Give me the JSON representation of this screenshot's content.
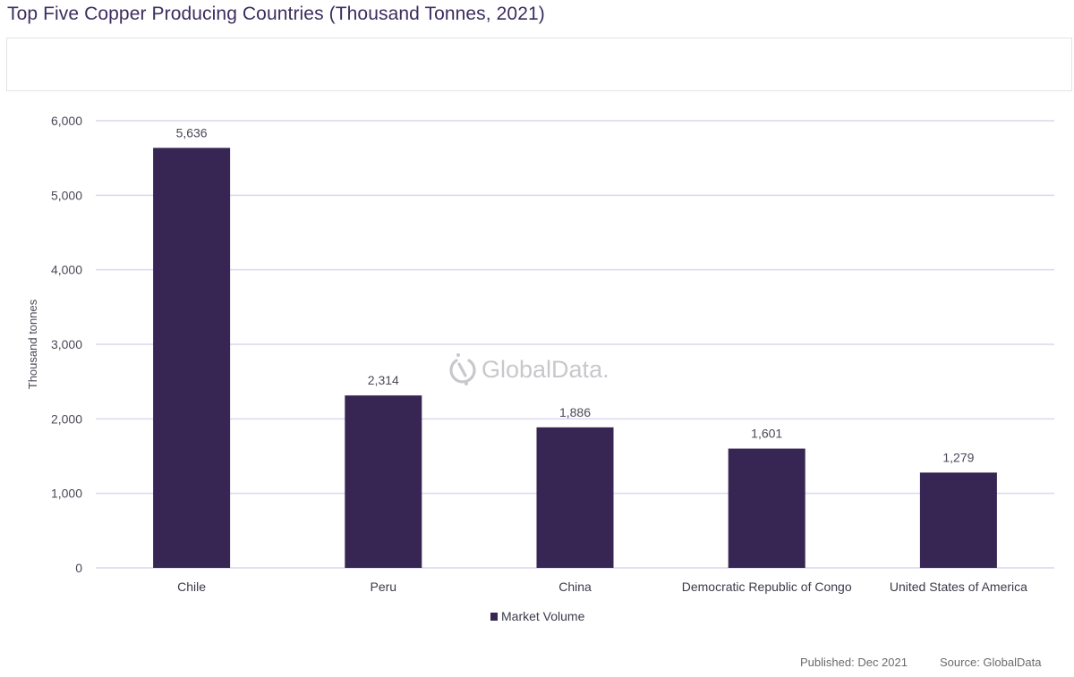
{
  "header": {
    "title": "Top Five Copper Producing Countries (Thousand Tonnes, 2021)"
  },
  "watermark": {
    "text": "GlobalData.",
    "icon": "globaldata-logo-icon"
  },
  "footer": {
    "published": "Published: Dec 2021",
    "source": "Source: GlobalData"
  },
  "colors": {
    "bar": "#372653",
    "grid": "#dcd6ef",
    "title": "#3b2d5e"
  },
  "chart_data": {
    "type": "bar",
    "title": "Top Five Copper Producing Countries (Thousand Tonnes, 2021)",
    "xlabel": "",
    "ylabel": "Thousand tonnes",
    "categories": [
      "Chile",
      "Peru",
      "China",
      "Democratic Republic of Congo",
      "United States of America"
    ],
    "series": [
      {
        "name": "Market Volume",
        "values": [
          5636,
          2314,
          1886,
          1601,
          1279
        ]
      }
    ],
    "data_labels": [
      "5,636",
      "2,314",
      "1,886",
      "1,601",
      "1,279"
    ],
    "ylim": [
      0,
      6000
    ],
    "yticks": [
      0,
      1000,
      2000,
      3000,
      4000,
      5000,
      6000
    ],
    "ytick_labels": [
      "0",
      "1,000",
      "2,000",
      "3,000",
      "4,000",
      "5,000",
      "6,000"
    ],
    "grid": true,
    "legend_position": "bottom-center"
  }
}
